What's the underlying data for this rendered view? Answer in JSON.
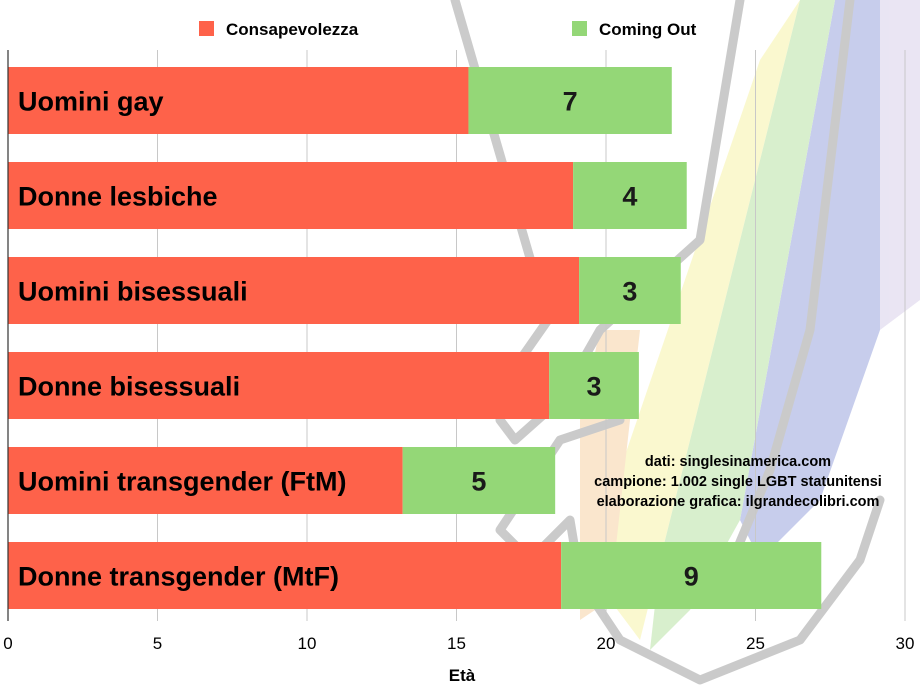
{
  "chart_data": {
    "type": "bar",
    "orientation": "horizontal",
    "stacked": true,
    "categories": [
      "Uomini gay",
      "Donne lesbiche",
      "Uomini bisessuali",
      "Donne bisessuali",
      "Uomini transgender (FtM)",
      "Donne transgender (MtF)"
    ],
    "series": [
      {
        "name": "Consapevolezza",
        "color": "#fe624a",
        "values": [
          15.4,
          18.9,
          19.1,
          18.1,
          13.2,
          18.5
        ]
      },
      {
        "name": "Coming Out",
        "color": "#94d777",
        "values": [
          6.8,
          3.8,
          3.4,
          3.0,
          5.1,
          8.7
        ]
      }
    ],
    "value_labels": [
      "7",
      "4",
      "3",
      "3",
      "5",
      "9"
    ],
    "xlabel": "Età",
    "ylabel": "",
    "xlim": [
      0,
      30
    ],
    "xticks": [
      0,
      5,
      10,
      15,
      20,
      25,
      30
    ],
    "grid": true,
    "legend": "top",
    "notes": [
      "dati: singlesinamerica.com",
      "campione: 1.002 single LGBT statunitensi",
      "elaborazione grafica: ilgrandecolibri.com"
    ]
  }
}
